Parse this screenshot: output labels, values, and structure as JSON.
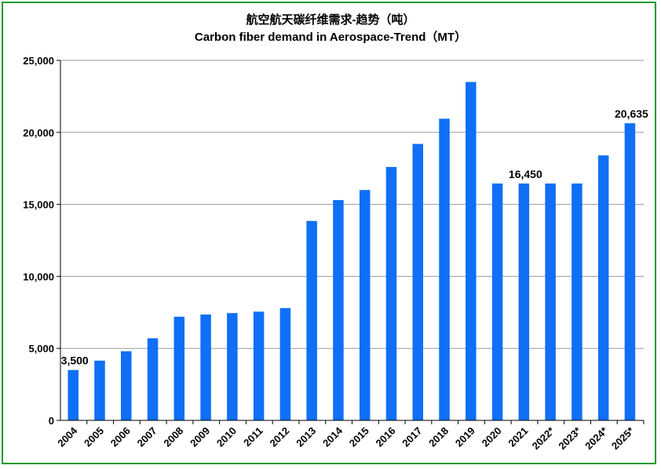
{
  "chart_data": {
    "type": "bar",
    "title": "航空航天碳纤维需求-趋势（吨）",
    "subtitle": "Carbon fiber demand in Aerospace-Trend（MT）",
    "xlabel": "",
    "ylabel": "",
    "ylim": [
      0,
      25000
    ],
    "yticks": [
      0,
      5000,
      10000,
      15000,
      20000,
      25000
    ],
    "ytick_labels": [
      "0",
      "5,000",
      "10,000",
      "15,000",
      "20,000",
      "25,000"
    ],
    "grid": true,
    "legend": "none",
    "bar_color": "#0f6ff5",
    "categories": [
      "2004",
      "2005",
      "2006",
      "2007",
      "2008",
      "2009",
      "2010",
      "2011",
      "2012",
      "2013",
      "2014",
      "2015",
      "2016",
      "2017",
      "2018",
      "2019",
      "2020",
      "2021",
      "2022*",
      "2023*",
      "2024*",
      "2025*"
    ],
    "values": [
      3500,
      4150,
      4800,
      5700,
      7200,
      7350,
      7450,
      7550,
      7800,
      13850,
      15300,
      16000,
      17600,
      19200,
      20950,
      23500,
      16450,
      16450,
      16450,
      16450,
      18400,
      20635
    ],
    "data_labels": [
      {
        "category": "2004",
        "text": "3,500"
      },
      {
        "category": "2021",
        "text": "16,450"
      },
      {
        "category": "2025*",
        "text": "20,635"
      }
    ]
  }
}
